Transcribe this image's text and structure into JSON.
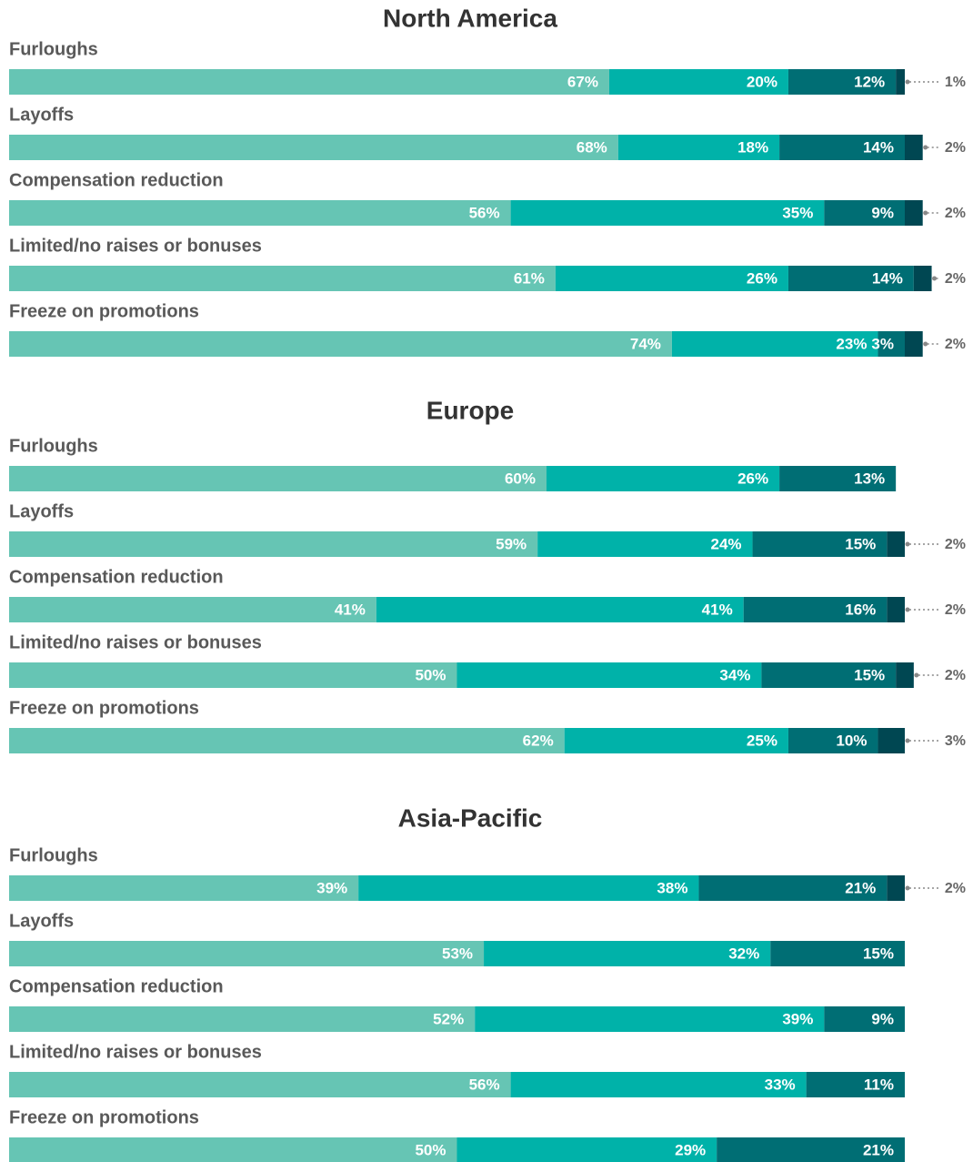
{
  "chart_data": [
    {
      "type": "bar",
      "title": "North America",
      "categories": [
        "Furloughs",
        "Layoffs",
        "Compensation reduction",
        "Limited/no raises or bonuses",
        "Freeze on promotions"
      ],
      "xlim": [
        0,
        100
      ],
      "series": [
        {
          "color": "#66c5b4",
          "values": [
            67,
            68,
            56,
            61,
            74
          ],
          "value_labels": [
            "67%",
            "68%",
            "56%",
            "61%",
            "74%"
          ]
        },
        {
          "color": "#00b2a9",
          "values": [
            20,
            18,
            35,
            26,
            23
          ],
          "value_labels": [
            "20%",
            "18%",
            "35%",
            "26%",
            "23%"
          ]
        },
        {
          "color": "#006e74",
          "values": [
            12,
            14,
            9,
            14,
            3
          ],
          "value_labels": [
            "12%",
            "14%",
            "9%",
            "14%",
            "3%"
          ]
        },
        {
          "color": "#004752",
          "values": [
            1,
            2,
            2,
            2,
            2
          ],
          "value_labels": [
            "1%",
            "2%",
            "2%",
            "2%",
            "2%"
          ]
        }
      ]
    },
    {
      "type": "bar",
      "title": "Europe",
      "categories": [
        "Furloughs",
        "Layoffs",
        "Compensation reduction",
        "Limited/no raises or bonuses",
        "Freeze on promotions"
      ],
      "xlim": [
        0,
        100
      ],
      "series": [
        {
          "color": "#66c5b4",
          "values": [
            60,
            59,
            41,
            50,
            62
          ],
          "value_labels": [
            "60%",
            "59%",
            "41%",
            "50%",
            "62%"
          ]
        },
        {
          "color": "#00b2a9",
          "values": [
            26,
            24,
            41,
            34,
            25
          ],
          "value_labels": [
            "26%",
            "24%",
            "41%",
            "34%",
            "25%"
          ]
        },
        {
          "color": "#006e74",
          "values": [
            13,
            15,
            16,
            15,
            10
          ],
          "value_labels": [
            "13%",
            "15%",
            "16%",
            "15%",
            "10%"
          ]
        },
        {
          "color": "#004752",
          "values": [
            null,
            2,
            2,
            2,
            3
          ],
          "value_labels": [
            null,
            "2%",
            "2%",
            "2%",
            "3%"
          ]
        }
      ]
    },
    {
      "type": "bar",
      "title": "Asia-Pacific",
      "categories": [
        "Furloughs",
        "Layoffs",
        "Compensation reduction",
        "Limited/no raises or bonuses",
        "Freeze on promotions"
      ],
      "xlim": [
        0,
        100
      ],
      "series": [
        {
          "color": "#66c5b4",
          "values": [
            39,
            53,
            52,
            56,
            50
          ],
          "value_labels": [
            "39%",
            "53%",
            "52%",
            "56%",
            "50%"
          ]
        },
        {
          "color": "#00b2a9",
          "values": [
            38,
            32,
            39,
            33,
            29
          ],
          "value_labels": [
            "38%",
            "32%",
            "39%",
            "33%",
            "29%"
          ]
        },
        {
          "color": "#006e74",
          "values": [
            21,
            15,
            9,
            11,
            21
          ],
          "value_labels": [
            "21%",
            "15%",
            "9%",
            "11%",
            "21%"
          ]
        },
        {
          "color": "#004752",
          "values": [
            2,
            null,
            null,
            null,
            null
          ],
          "value_labels": [
            "2%",
            null,
            null,
            null,
            null
          ]
        }
      ]
    }
  ]
}
